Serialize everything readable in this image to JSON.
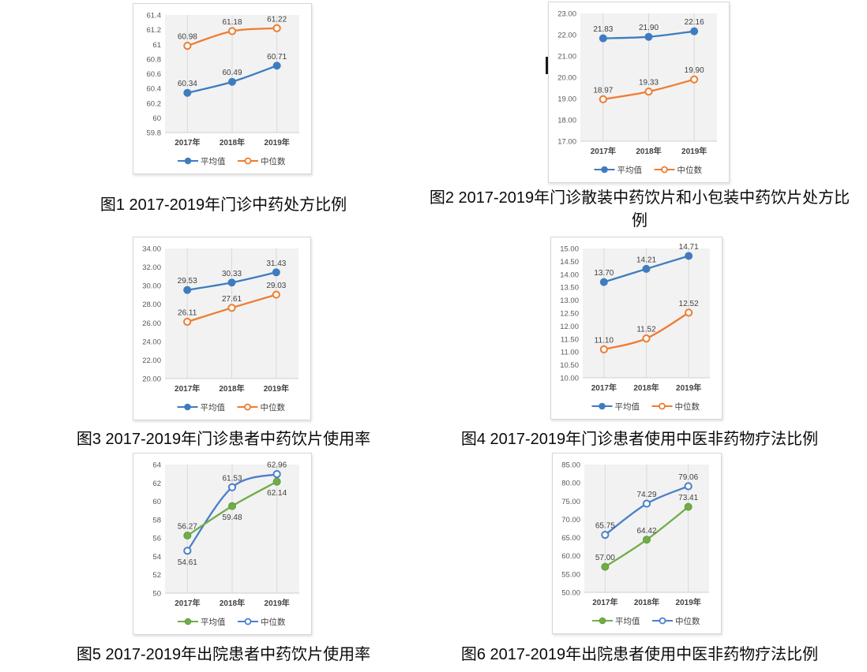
{
  "page": {
    "background": "#ffffff"
  },
  "colors": {
    "mean_blue": "#3e7cbf",
    "median_orange": "#ed7d31",
    "mean_green": "#71ad47",
    "mean_green_edge": "#5e9a3a",
    "median_blue": "#4b7fc9",
    "plot_bg": "#f2f2f2",
    "gridline": "#d9d9d9",
    "plot_edge": "#cfcfcf",
    "tick_text": "#595959",
    "axis_text": "#404040",
    "label_text": "#3f3f3f",
    "legend_text": "#404040"
  },
  "chart_data": [
    {
      "figure": "图1",
      "caption": "图1 2017-2019年门诊中药处方比例",
      "type": "line",
      "categories": [
        "2017年",
        "2018年",
        "2019年"
      ],
      "ylim": [
        59.8,
        61.4
      ],
      "yticks": [
        "61.4",
        "61.2",
        "61",
        "60.8",
        "60.6",
        "60.4",
        "60.2",
        "60",
        "59.8"
      ],
      "grid": "vertical",
      "legend_position": "bottom",
      "series": [
        {
          "name": "平均值",
          "role": "mean",
          "color": "#3e7cbf",
          "marker": "filled",
          "values": [
            60.34,
            60.49,
            60.71
          ],
          "label_pos": [
            "above",
            "above",
            "above"
          ]
        },
        {
          "name": "中位数",
          "role": "median",
          "color": "#ed7d31",
          "marker": "open",
          "values": [
            60.98,
            61.18,
            61.22
          ],
          "label_pos": [
            "above",
            "above",
            "above"
          ]
        }
      ]
    },
    {
      "figure": "图2",
      "caption": "图2 2017-2019年门诊散装中药饮片和小包装中药饮片处方比例",
      "type": "line",
      "categories": [
        "2017年",
        "2018年",
        "2019年"
      ],
      "ylim": [
        17,
        23
      ],
      "yticks": [
        "23.00",
        "22.00",
        "21.00",
        "20.00",
        "19.00",
        "18.00",
        "17.00"
      ],
      "grid": "vertical",
      "legend_position": "bottom",
      "series": [
        {
          "name": "平均值",
          "role": "mean",
          "color": "#3e7cbf",
          "marker": "filled",
          "values": [
            21.83,
            21.9,
            22.16
          ],
          "label_pos": [
            "above",
            "above",
            "above"
          ]
        },
        {
          "name": "中位数",
          "role": "median",
          "color": "#ed7d31",
          "marker": "open",
          "values": [
            18.97,
            19.33,
            19.9
          ],
          "label_pos": [
            "above",
            "above",
            "above"
          ]
        }
      ]
    },
    {
      "figure": "图3",
      "caption": "图3 2017-2019年门诊患者中药饮片使用率",
      "type": "line",
      "categories": [
        "2017年",
        "2018年",
        "2019年"
      ],
      "ylim": [
        20,
        34
      ],
      "yticks": [
        "34.00",
        "32.00",
        "30.00",
        "28.00",
        "26.00",
        "24.00",
        "22.00",
        "20.00"
      ],
      "grid": "vertical",
      "legend_position": "bottom",
      "series": [
        {
          "name": "平均值",
          "role": "mean",
          "color": "#3e7cbf",
          "marker": "filled",
          "values": [
            29.53,
            30.33,
            31.43
          ],
          "label_pos": [
            "above",
            "above",
            "above"
          ]
        },
        {
          "name": "中位数",
          "role": "median",
          "color": "#ed7d31",
          "marker": "open",
          "values": [
            26.11,
            27.61,
            29.03
          ],
          "label_pos": [
            "above",
            "above",
            "above"
          ]
        }
      ]
    },
    {
      "figure": "图4",
      "caption": "图4 2017-2019年门诊患者使用中医非药物疗法比例",
      "type": "line",
      "categories": [
        "2017年",
        "2018年",
        "2019年"
      ],
      "ylim": [
        10,
        15
      ],
      "yticks": [
        "15.00",
        "14.50",
        "14.00",
        "13.50",
        "13.00",
        "12.50",
        "12.00",
        "11.50",
        "11.00",
        "10.50",
        "10.00"
      ],
      "grid": "vertical",
      "legend_position": "bottom",
      "series": [
        {
          "name": "平均值",
          "role": "mean",
          "color": "#3e7cbf",
          "marker": "filled",
          "values": [
            13.7,
            14.21,
            14.71
          ],
          "label_pos": [
            "above",
            "above",
            "above"
          ]
        },
        {
          "name": "中位数",
          "role": "median",
          "color": "#ed7d31",
          "marker": "open",
          "values": [
            11.1,
            11.52,
            12.52
          ],
          "label_pos": [
            "above",
            "above",
            "above"
          ]
        }
      ]
    },
    {
      "figure": "图5",
      "caption": "图5 2017-2019年出院患者中药饮片使用率",
      "type": "line",
      "categories": [
        "2017年",
        "2018年",
        "2019年"
      ],
      "ylim": [
        50,
        64
      ],
      "yticks": [
        "64",
        "62",
        "60",
        "58",
        "56",
        "54",
        "52",
        "50"
      ],
      "grid": "vertical",
      "legend_position": "bottom",
      "series": [
        {
          "name": "平均值",
          "role": "mean",
          "color": "#71ad47",
          "edge": "#5e9a3a",
          "marker": "filled",
          "values": [
            56.27,
            59.48,
            62.14
          ],
          "label_pos": [
            "above",
            "below",
            "below"
          ]
        },
        {
          "name": "中位数",
          "role": "median",
          "color": "#4b7fc9",
          "marker": "open",
          "values": [
            54.61,
            61.53,
            62.96
          ],
          "label_pos": [
            "below",
            "above",
            "above"
          ]
        }
      ]
    },
    {
      "figure": "图6",
      "caption": "图6 2017-2019年出院患者使用中医非药物疗法比例",
      "type": "line",
      "categories": [
        "2017年",
        "2018年",
        "2019年"
      ],
      "ylim": [
        50,
        85
      ],
      "yticks": [
        "85.00",
        "80.00",
        "75.00",
        "70.00",
        "65.00",
        "60.00",
        "55.00",
        "50.00"
      ],
      "grid": "vertical",
      "legend_position": "bottom",
      "series": [
        {
          "name": "平均值",
          "role": "mean",
          "color": "#71ad47",
          "edge": "#5e9a3a",
          "marker": "filled",
          "values": [
            57.0,
            64.42,
            73.41
          ],
          "label_pos": [
            "above",
            "above",
            "above"
          ]
        },
        {
          "name": "中位数",
          "role": "median",
          "color": "#4b7fc9",
          "marker": "open",
          "values": [
            65.75,
            74.29,
            79.06
          ],
          "label_pos": [
            "above",
            "above",
            "above"
          ]
        }
      ]
    }
  ]
}
